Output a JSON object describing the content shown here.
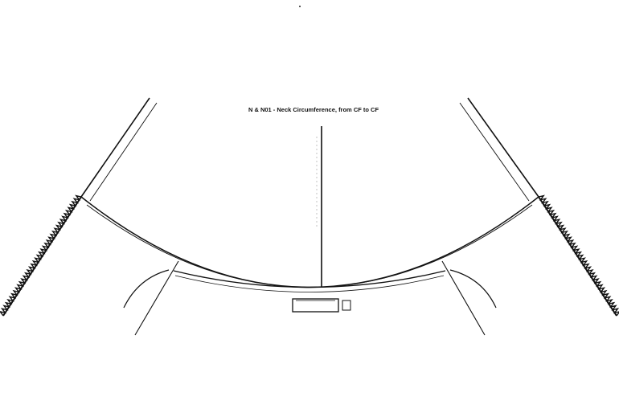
{
  "diagram": {
    "measurement_label": "N & N01 - Neck Circumference, from CF to CF"
  }
}
